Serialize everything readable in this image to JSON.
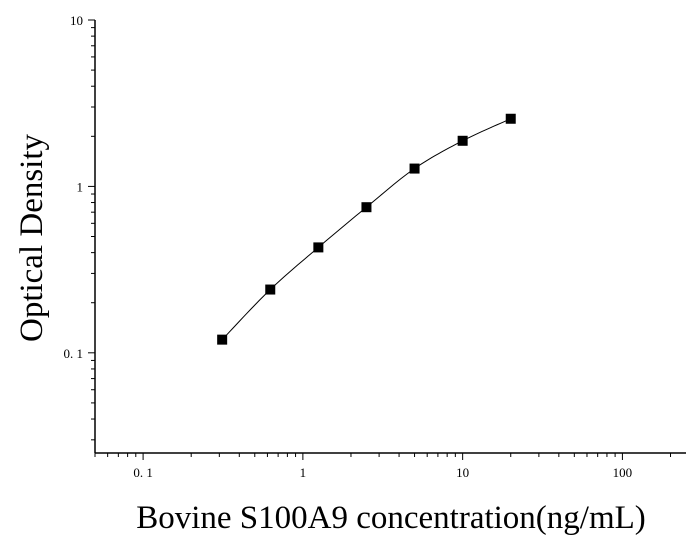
{
  "chart_data": {
    "type": "scatter",
    "title": "",
    "xlabel": "Bovine S100A9 concentration(ng/mL)",
    "ylabel": "Optical Density",
    "x_scale": "log",
    "y_scale": "log",
    "xlim": [
      0.05,
      250
    ],
    "ylim": [
      0.025,
      10
    ],
    "x_ticks": [
      0.1,
      1,
      10,
      100
    ],
    "x_tick_labels": [
      "0. 1",
      "1",
      "10",
      "100"
    ],
    "y_ticks": [
      0.1,
      1,
      10
    ],
    "y_tick_labels": [
      "0. 1",
      "1",
      "10"
    ],
    "grid": false,
    "series": [
      {
        "x": [
          0.3125,
          0.625,
          1.25,
          2.5,
          5,
          10,
          20
        ],
        "y": [
          0.12,
          0.24,
          0.43,
          0.75,
          1.28,
          1.88,
          2.55
        ],
        "marker": "square",
        "fit_curve": true,
        "color": "#000000"
      }
    ]
  }
}
